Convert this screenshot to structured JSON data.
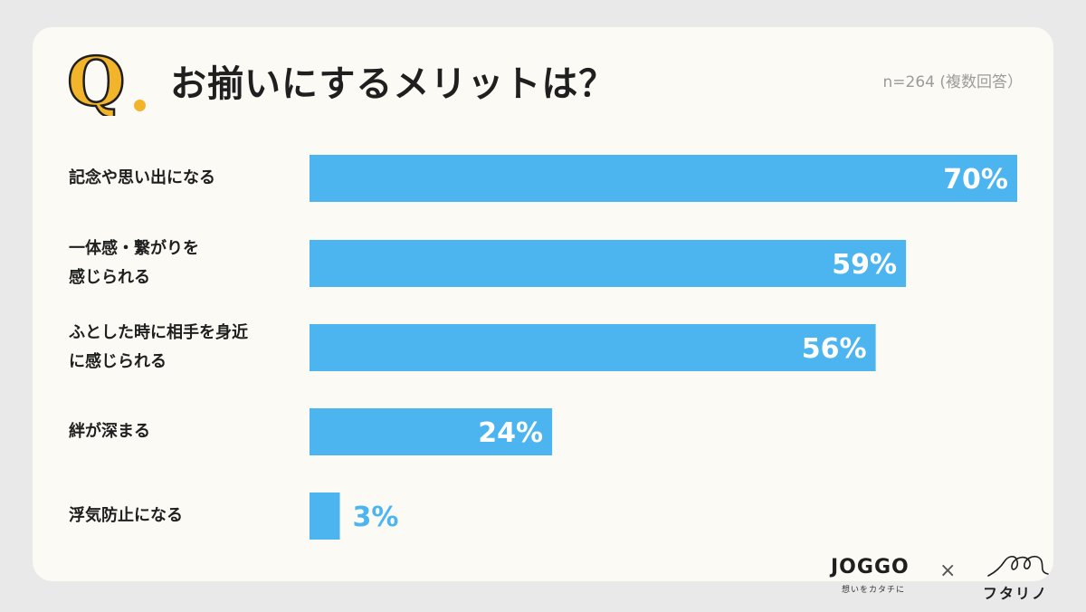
{
  "header": {
    "q_letter": "Q",
    "title": "お揃いにするメリットは？",
    "sample": "n=264 (複数回答）"
  },
  "colors": {
    "bar": "#4cb5ef",
    "accent_yellow": "#f2b42b",
    "label_in_bar": "#ffffff",
    "label_out_bar": "#4cb5ef"
  },
  "chart_data": {
    "type": "bar",
    "orientation": "horizontal",
    "categories": [
      "記念や思い出になる",
      "一体感・繋がりを感じられる",
      "ふとした時に相手を身近に感じられる",
      "絆が深まる",
      "浮気防止になる"
    ],
    "category_lines": [
      [
        "記念や思い出になる"
      ],
      [
        "一体感・繋がりを",
        "感じられる"
      ],
      [
        "ふとした時に相手を身近",
        "に感じられる"
      ],
      [
        "絆が深まる"
      ],
      [
        "浮気防止になる"
      ]
    ],
    "values": [
      70,
      59,
      56,
      24,
      3
    ],
    "value_labels": [
      "70%",
      "59%",
      "56%",
      "24%",
      "3%"
    ],
    "xlim": [
      0,
      70
    ],
    "grid": false,
    "legend": "none"
  },
  "footer": {
    "joggo_name": "JOGGO",
    "joggo_tagline": "想いをカタチに",
    "times": "×",
    "futari_name": "フタリノ"
  }
}
